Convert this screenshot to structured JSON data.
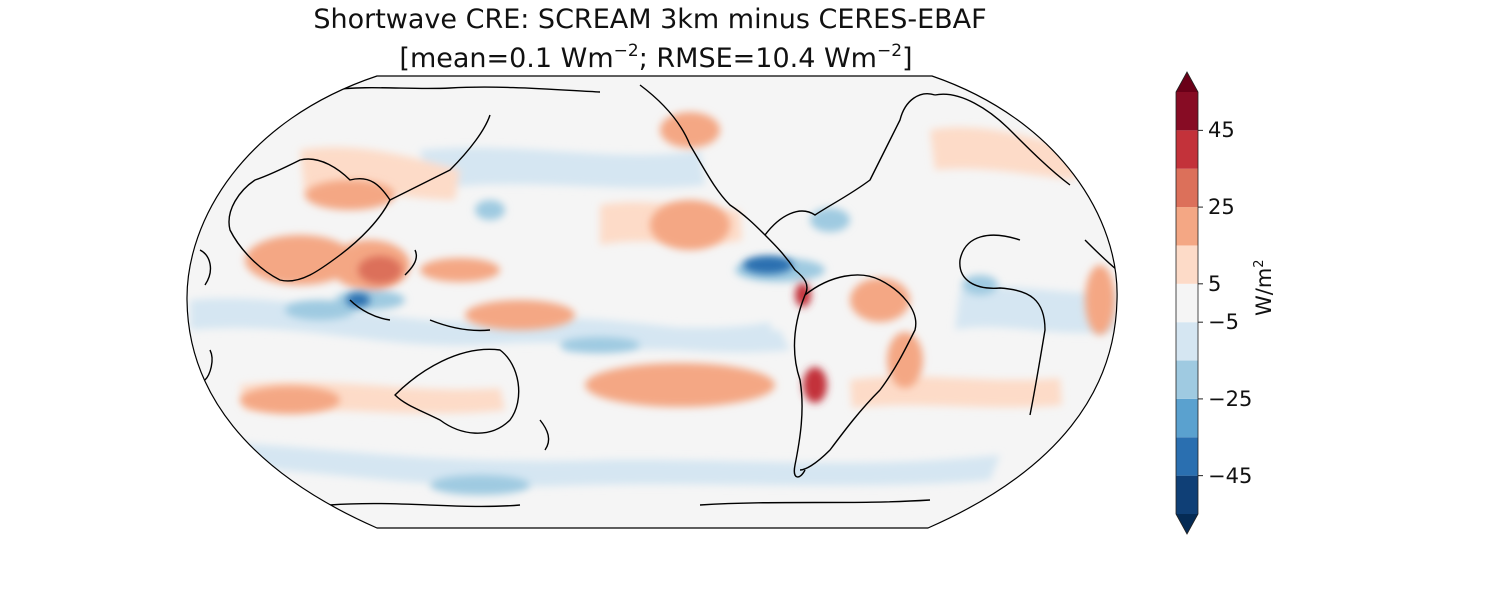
{
  "figure": {
    "title_line1": "Shortwave CRE: SCREAM 3km minus CERES-EBAF",
    "title_line2": {
      "open": "[mean=0.1 Wm",
      "sup1": "−2",
      "middle": "; RMSE=10.4 Wm",
      "sup2": "−2",
      "close": "]"
    }
  },
  "map": {
    "projection": "Robinson",
    "central_longitude": 180,
    "field": "Shortwave CRE difference (SCREAM 3km minus CERES-EBAF)"
  },
  "colorbar": {
    "unit_base": "W/m",
    "unit_sup": "2",
    "tick_labels": [
      "45",
      "25",
      "5",
      "−5",
      "−25",
      "−45"
    ],
    "tick_values": [
      45,
      25,
      5,
      -5,
      -25,
      -45
    ],
    "levels": [
      -55,
      -45,
      -35,
      -25,
      -15,
      -5,
      5,
      15,
      25,
      35,
      45,
      55
    ],
    "colors": [
      "#0f3f76",
      "#2a6fb0",
      "#5aa1cf",
      "#9fcae1",
      "#d5e6f2",
      "#f5f5f5",
      "#fddbc8",
      "#f4a784",
      "#dc705a",
      "#c3323a",
      "#870c24"
    ],
    "extend": "both",
    "extend_low_color": "#052b55",
    "extend_high_color": "#6a0018"
  },
  "chart_data": {
    "type": "heatmap",
    "title": "Shortwave CRE: SCREAM 3km minus CERES-EBAF",
    "subtitle": "[mean=0.1 Wm−2; RMSE=10.4 Wm−2]",
    "stats": {
      "mean": 0.1,
      "rmse": 10.4
    },
    "colorbar_label": "W/m2",
    "colorbar_ticks": [
      45,
      25,
      5,
      -5,
      -25,
      -45
    ],
    "colorbar_range": [
      -55,
      55
    ]
  }
}
